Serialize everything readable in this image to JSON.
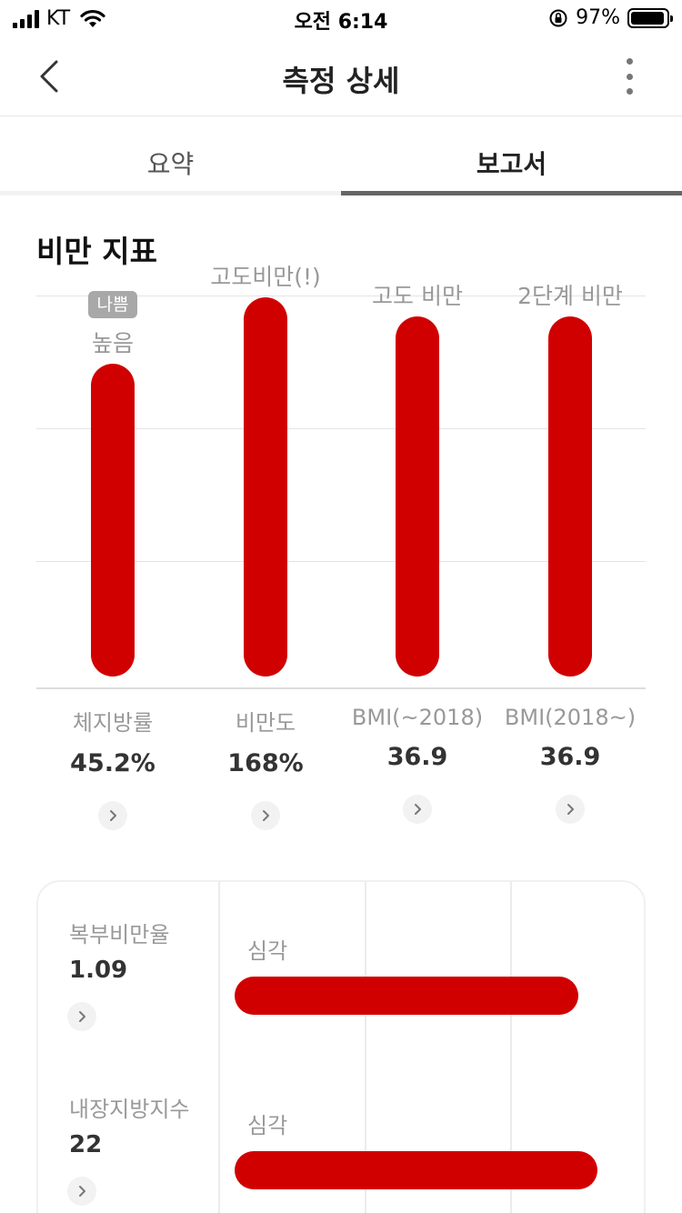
{
  "status": {
    "carrier": "KT",
    "time": "오전 6:14",
    "battery": "97%"
  },
  "nav": {
    "title": "측정 상세"
  },
  "tabs": [
    {
      "label": "요약"
    },
    {
      "label": "보고서"
    }
  ],
  "section": {
    "title": "비만 지표"
  },
  "chart_data": {
    "type": "bar",
    "categories": [
      "체지방률",
      "비만도",
      "BMI(~2018)",
      "BMI(2018~)"
    ],
    "values": [
      45.2,
      168,
      36.9,
      36.9
    ],
    "value_labels": [
      "45.2%",
      "168%",
      "36.9",
      "36.9"
    ],
    "bar_labels": [
      "높음",
      "고도비만(!)",
      "고도 비만",
      "2단계 비만"
    ],
    "badge": "나쁨",
    "fill_levels": [
      0.8,
      0.97,
      0.92,
      0.92
    ],
    "bar_color": "#d10000"
  },
  "card": {
    "rows": [
      {
        "label": "복부비만율",
        "value": "1.09",
        "level": "심각",
        "fill": 0.9
      },
      {
        "label": "내장지방지수",
        "value": "22",
        "level": "심각",
        "fill": 0.95
      }
    ],
    "bar_color": "#d10000"
  }
}
